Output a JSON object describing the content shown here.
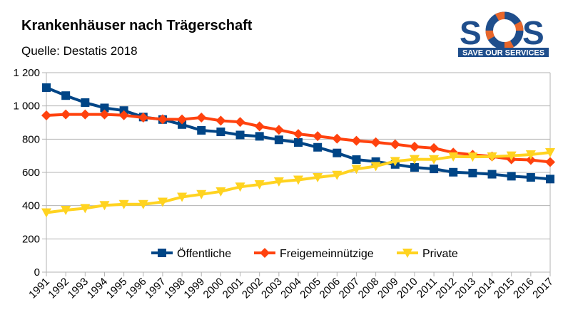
{
  "chart_data": {
    "type": "line",
    "title": "Krankenhäuser nach Trägerschaft",
    "subtitle": "Quelle: Destatis 2018",
    "x": [
      "1991",
      "1992",
      "1993",
      "1994",
      "1995",
      "1996",
      "1997",
      "1998",
      "1999",
      "2000",
      "2001",
      "2002",
      "2003",
      "2004",
      "2005",
      "2006",
      "2007",
      "2008",
      "2009",
      "2010",
      "2011",
      "2012",
      "2013",
      "2014",
      "2015",
      "2016",
      "2017"
    ],
    "ylim": [
      0,
      1200
    ],
    "yticks": [
      0,
      200,
      400,
      600,
      800,
      1000,
      1200
    ],
    "ytick_labels": [
      "0",
      "200",
      "400",
      "600",
      "800",
      "1 000",
      "1 200"
    ],
    "grid": true,
    "legend_position": "lower-center inside",
    "series": [
      {
        "name": "Öffentliche",
        "color": "#004586",
        "marker": "square",
        "values": [
          1110,
          1062,
          1020,
          988,
          972,
          933,
          918,
          888,
          853,
          844,
          825,
          817,
          796,
          780,
          751,
          717,
          677,
          665,
          648,
          630,
          621,
          601,
          596,
          589,
          577,
          570,
          560
        ]
      },
      {
        "name": "Freigemeinnützige",
        "color": "#FF420E",
        "marker": "diamond",
        "values": [
          943,
          949,
          949,
          949,
          944,
          930,
          920,
          919,
          930,
          911,
          903,
          877,
          856,
          831,
          818,
          803,
          790,
          781,
          769,
          755,
          746,
          719,
          706,
          696,
          679,
          675,
          662
        ]
      },
      {
        "name": "Private",
        "color": "#FFD320",
        "marker": "triangle-down",
        "values": [
          358,
          373,
          384,
          402,
          408,
          408,
          422,
          452,
          468,
          485,
          513,
          527,
          545,
          555,
          570,
          584,
          620,
          637,
          667,
          679,
          678,
          695,
          694,
          695,
          700,
          707,
          720
        ]
      }
    ]
  },
  "logo": {
    "letters": "SOS",
    "tagline": "SAVE OUR SERVICES",
    "color": "#1F4E8C",
    "accent_color": "#E8662A"
  }
}
